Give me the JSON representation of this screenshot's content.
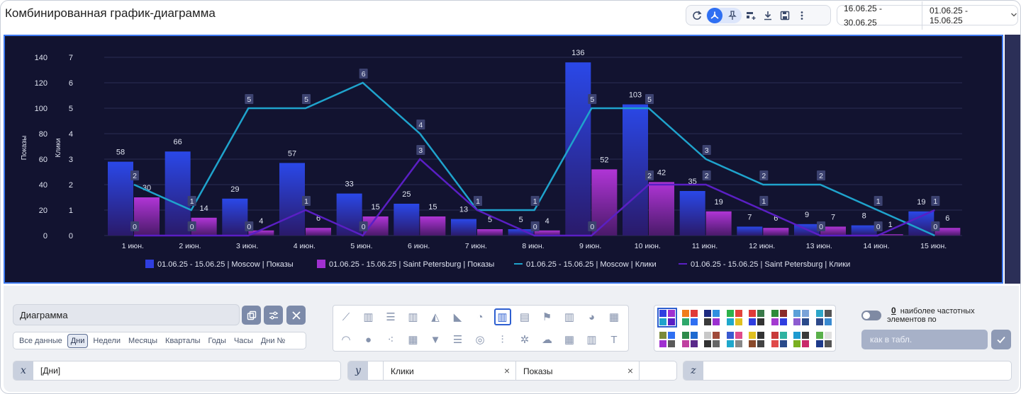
{
  "title": "Комбинированная график-диаграмма",
  "dates": {
    "range1": "16.06.25 - 30.06.25",
    "range2": "01.06.25 - 15.06.25"
  },
  "chart_data": {
    "type": "bar+line",
    "categories": [
      "1 июн.",
      "2 июн.",
      "3 июн.",
      "4 июн.",
      "5 июн.",
      "6 июн.",
      "7 июн.",
      "8 июн.",
      "9 июн.",
      "10 июн.",
      "11 июн.",
      "12 июн.",
      "13 июн.",
      "14 июн.",
      "15 июн."
    ],
    "y_left": {
      "label": "Показы",
      "ticks": [
        0,
        20,
        40,
        60,
        80,
        100,
        120,
        140
      ],
      "range": [
        0,
        140
      ]
    },
    "y_right": {
      "label": "Клики",
      "ticks": [
        0,
        1,
        2,
        3,
        4,
        5,
        6,
        7
      ],
      "range": [
        0,
        7
      ]
    },
    "bars": [
      {
        "name": "01.06.25 - 15.06.25 | Moscow | Показы",
        "color": "#2f3ee0",
        "values": [
          58,
          66,
          29,
          57,
          33,
          25,
          13,
          5,
          136,
          103,
          35,
          7,
          9,
          8,
          19
        ]
      },
      {
        "name": "01.06.25 - 15.06.25 | Saint Petersburg | Показы",
        "color": "#a030d0",
        "values": [
          30,
          14,
          4,
          6,
          15,
          15,
          5,
          4,
          52,
          42,
          19,
          6,
          7,
          1,
          6
        ]
      }
    ],
    "lines": [
      {
        "name": "01.06.25 - 15.06.25 | Moscow | Клики",
        "color": "#1fa3cc",
        "values": [
          2,
          1,
          5,
          5,
          6,
          4,
          1,
          1,
          5,
          5,
          3,
          2,
          2,
          1,
          0
        ]
      },
      {
        "name": "01.06.25 - 15.06.25 | Saint Petersburg | Клики",
        "color": "#5a1fc4",
        "values": [
          0,
          0,
          0,
          1,
          0,
          3,
          1,
          0,
          0,
          2,
          2,
          1,
          0,
          0,
          1
        ]
      }
    ],
    "grid": true,
    "legend": "bottom"
  },
  "controls": {
    "name_value": "Диаграмма",
    "periods": [
      "Все данные",
      "Дни",
      "Недели",
      "Месяцы",
      "Кварталы",
      "Годы",
      "Часы",
      "Дни №"
    ],
    "selected_period": "Дни",
    "freq_count": "0",
    "freq_text": "наиболее частотных элементов по",
    "as_table_placeholder": "как в табл.",
    "x_label": "x",
    "x_value": "[Дни]",
    "y_label": "y",
    "y_chip1": "Клики",
    "y_chip2": "Показы",
    "z_label": "z"
  }
}
